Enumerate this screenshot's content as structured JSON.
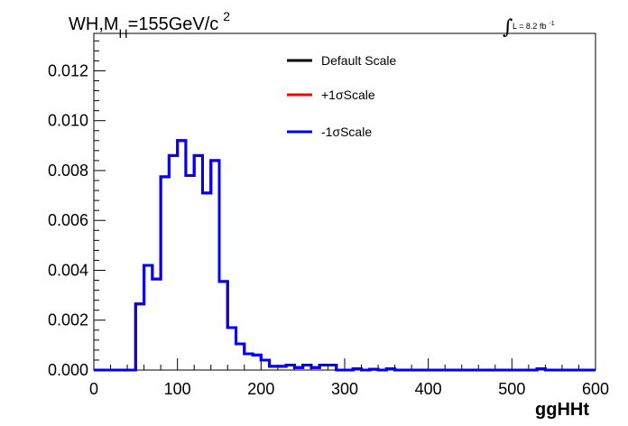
{
  "title": {
    "main": "WH,M",
    "subscript": "H",
    "rest": "=155GeV/c",
    "superscript": "2"
  },
  "lumi": {
    "text": "L = 8.2 fb",
    "superscript": "-1"
  },
  "chart_data": {
    "type": "line",
    "style": "step-histogram",
    "xlabel": "ggHHt",
    "ylabel": "",
    "xlim": [
      0,
      600
    ],
    "ylim": [
      0,
      0.0135
    ],
    "x_ticks": [
      0,
      100,
      200,
      300,
      400,
      500,
      600
    ],
    "x_tick_labels": [
      "0",
      "100",
      "200",
      "300",
      "400",
      "500",
      "600"
    ],
    "y_ticks": [
      0,
      0.002,
      0.004,
      0.006,
      0.008,
      0.01,
      0.012
    ],
    "y_tick_labels": [
      "0.000",
      "0.002",
      "0.004",
      "0.006",
      "0.008",
      "0.010",
      "0.012"
    ],
    "grid": false,
    "legend_position": "top-center",
    "bin_edges": [
      0,
      10,
      20,
      30,
      40,
      50,
      60,
      70,
      80,
      90,
      100,
      110,
      120,
      130,
      140,
      150,
      160,
      170,
      180,
      190,
      200,
      210,
      220,
      230,
      240,
      250,
      260,
      270,
      280,
      290,
      300,
      310,
      320,
      330,
      340,
      350,
      360,
      370,
      380,
      390,
      400,
      410,
      420,
      430,
      440,
      450,
      460,
      470,
      480,
      490,
      500,
      510,
      520,
      530,
      540,
      550,
      560,
      570,
      580,
      590,
      600
    ],
    "series": [
      {
        "name": "Default Scale",
        "color": "#000000",
        "values": [
          0,
          0,
          0,
          0,
          0,
          0.00265,
          0.0042,
          0.00365,
          0.00775,
          0.0086,
          0.0092,
          0.0078,
          0.0086,
          0.0071,
          0.0084,
          0.00355,
          0.0017,
          0.00105,
          0.00065,
          0.0006,
          0.0004,
          0.00015,
          0.00015,
          0.0002,
          0.0001,
          0.0002,
          0.0001,
          0.0002,
          0.0002,
          0,
          0,
          5e-05,
          0,
          3e-05,
          0,
          5e-05,
          0,
          0,
          0,
          0,
          0,
          0,
          0,
          0,
          0,
          0,
          0,
          0,
          0,
          0,
          0,
          0,
          0,
          5e-05,
          0,
          0,
          0,
          0,
          0,
          0
        ]
      },
      {
        "name": "+1σScale",
        "color": "#ff0000",
        "values": [
          0,
          0,
          0,
          0,
          0,
          0.00265,
          0.0042,
          0.00365,
          0.00775,
          0.0086,
          0.0092,
          0.0078,
          0.0086,
          0.0071,
          0.0084,
          0.00355,
          0.0017,
          0.00105,
          0.00065,
          0.0006,
          0.0004,
          0.00015,
          0.00015,
          0.0002,
          0.0001,
          0.0002,
          0.0001,
          0.0002,
          0.0002,
          0,
          0,
          5e-05,
          0,
          3e-05,
          0,
          5e-05,
          0,
          0,
          0,
          0,
          0,
          0,
          0,
          0,
          0,
          0,
          0,
          0,
          0,
          0,
          0,
          0,
          0,
          5e-05,
          0,
          0,
          0,
          0,
          0,
          0
        ]
      },
      {
        "name": "-1σScale",
        "color": "#0000ff",
        "values": [
          0,
          0,
          0,
          0,
          0,
          0.00265,
          0.0042,
          0.00365,
          0.00775,
          0.0086,
          0.0092,
          0.0078,
          0.0086,
          0.0071,
          0.0084,
          0.00355,
          0.0017,
          0.00105,
          0.00065,
          0.0006,
          0.0004,
          0.00015,
          0.00015,
          0.0002,
          0.0001,
          0.0002,
          0.0001,
          0.0002,
          0.0002,
          0,
          0,
          5e-05,
          0,
          3e-05,
          0,
          5e-05,
          0,
          0,
          0,
          0,
          0,
          0,
          0,
          0,
          0,
          0,
          0,
          0,
          0,
          0,
          0,
          0,
          0,
          5e-05,
          0,
          0,
          0,
          0,
          0,
          0
        ]
      }
    ]
  }
}
